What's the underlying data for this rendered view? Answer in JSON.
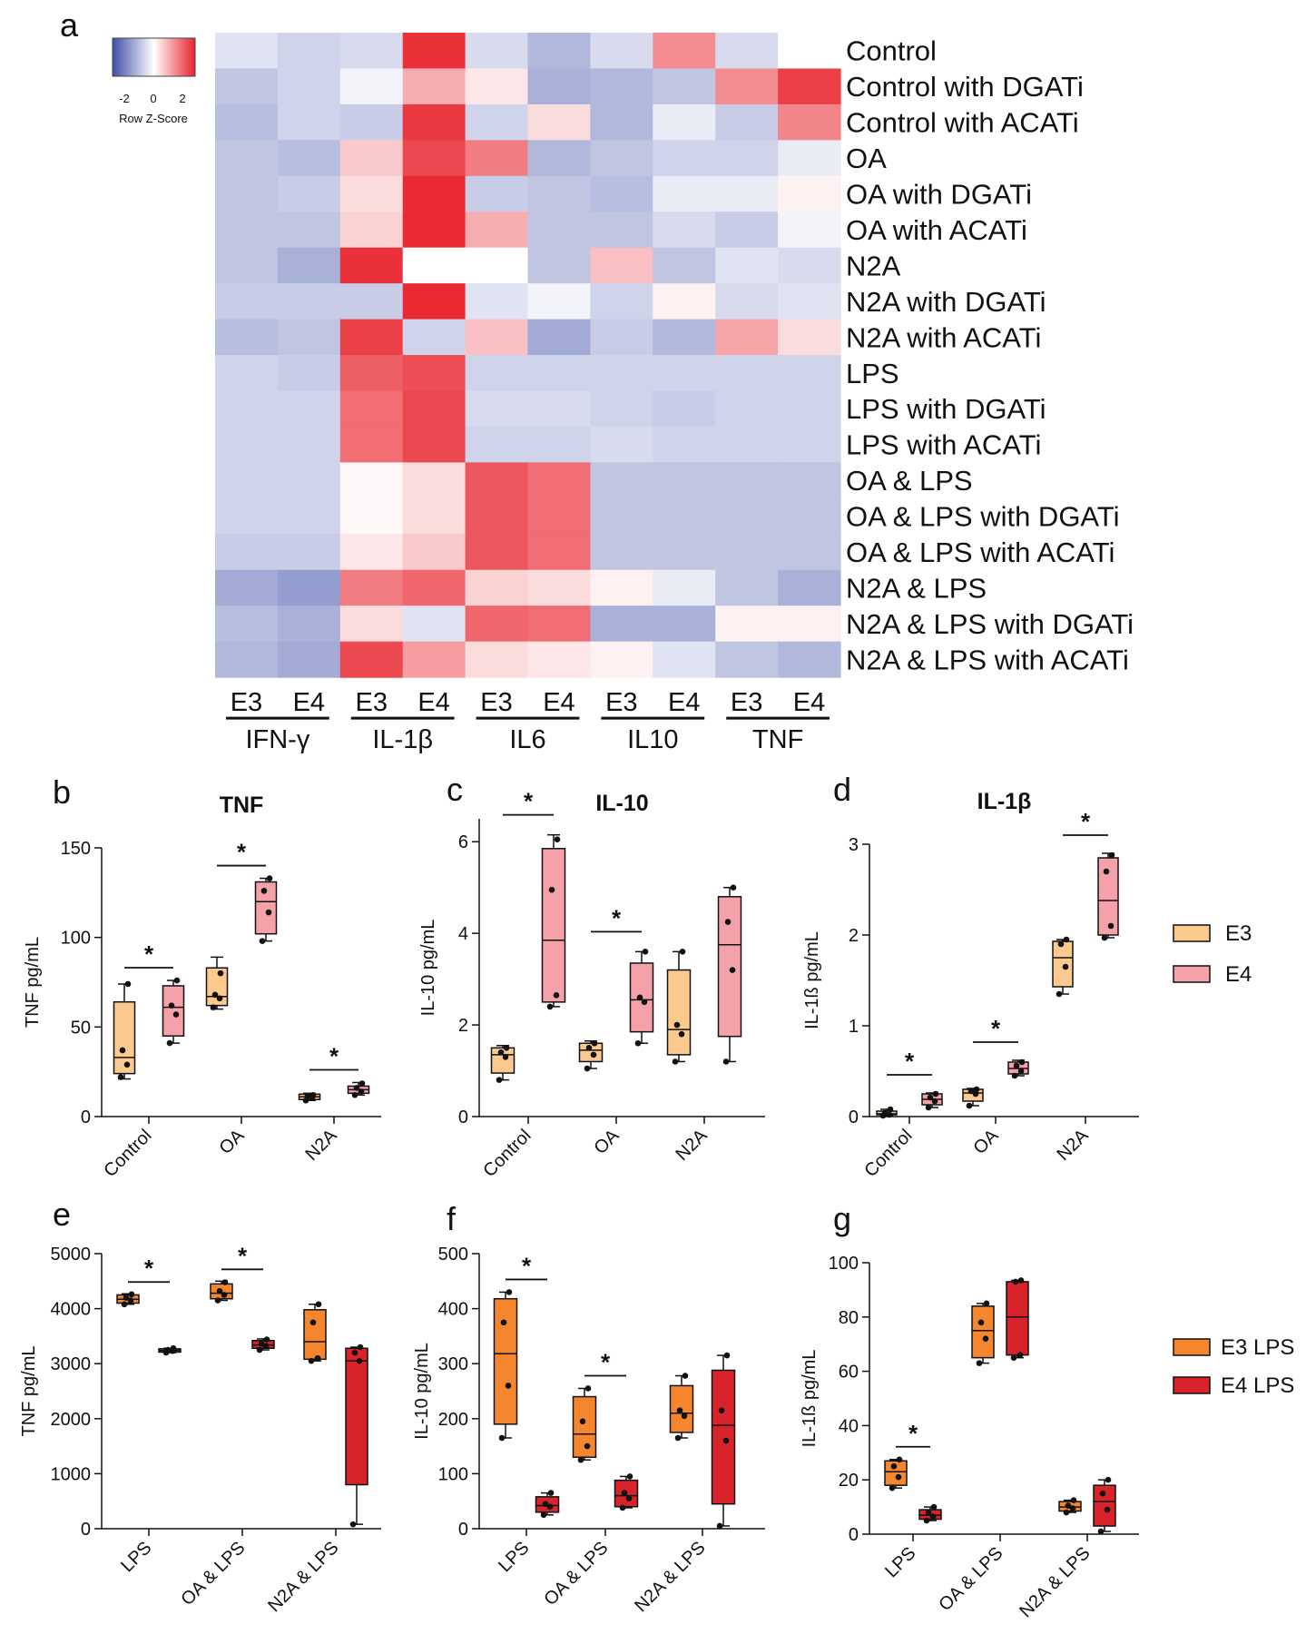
{
  "panel_letters": {
    "a": "a",
    "b": "b",
    "c": "c",
    "d": "d",
    "e": "e",
    "f": "f",
    "g": "g"
  },
  "colors": {
    "e3": "#fcc98e",
    "e4": "#f4a1a9",
    "e3lps": "#f5862e",
    "e4lps": "#d9232a",
    "low": "#3f4fa8",
    "mid": "#ffffff",
    "high": "#e8232c"
  },
  "chart_data": [
    {
      "panel": "a",
      "type": "heatmap",
      "legend": {
        "title": "Row Z-Score",
        "ticks": [
          "-2",
          "0",
          "2"
        ],
        "range": [
          -2.6,
          2.6
        ]
      },
      "rows": [
        "Control",
        "Control with DGATi",
        "Control with ACATi",
        "OA",
        "OA with DGATi",
        "OA with ACATi",
        "N2A",
        "N2A with DGATi",
        "N2A with ACATi",
        "LPS",
        "LPS with DGATi",
        "LPS with ACATi",
        "OA & LPS",
        "OA & LPS with DGATi",
        "OA & LPS with ACATi",
        "N2A & LPS",
        "N2A & LPS with DGATi",
        "N2A & LPS with ACATi"
      ],
      "columns": [
        "E3",
        "E4",
        "E3",
        "E4",
        "E3",
        "E4",
        "E3",
        "E4",
        "E3",
        "E4"
      ],
      "groups": [
        "IFN-γ",
        "IL-1β",
        "IL6",
        "IL10",
        "TNF"
      ],
      "values": [
        [
          -0.3,
          -0.5,
          -0.4,
          2.4,
          -0.4,
          -0.9,
          -0.4,
          1.2,
          -0.4,
          0.0
        ],
        [
          -0.7,
          -0.5,
          -0.1,
          0.8,
          0.2,
          -1.0,
          -0.9,
          -0.7,
          1.2,
          2.2
        ],
        [
          -0.8,
          -0.5,
          -0.6,
          2.3,
          -0.5,
          0.3,
          -0.9,
          -0.2,
          -0.6,
          1.3
        ],
        [
          -0.7,
          -0.8,
          0.5,
          2.1,
          1.4,
          -0.9,
          -0.7,
          -0.5,
          -0.5,
          -0.2
        ],
        [
          -0.7,
          -0.6,
          0.3,
          2.5,
          -0.6,
          -0.7,
          -0.8,
          -0.2,
          -0.2,
          0.1
        ],
        [
          -0.7,
          -0.7,
          0.4,
          2.5,
          0.8,
          -0.7,
          -0.7,
          -0.4,
          -0.6,
          -0.1
        ],
        [
          -0.7,
          -1.0,
          2.4,
          0.0,
          0.0,
          -0.7,
          0.6,
          -0.7,
          -0.3,
          -0.4
        ],
        [
          -0.6,
          -0.6,
          -0.6,
          2.5,
          -0.3,
          -0.1,
          -0.5,
          0.1,
          -0.4,
          -0.3
        ],
        [
          -0.8,
          -0.7,
          2.2,
          -0.5,
          0.6,
          -1.1,
          -0.6,
          -0.9,
          0.9,
          0.3
        ],
        [
          -0.5,
          -0.6,
          1.8,
          2.0,
          -0.5,
          -0.5,
          -0.5,
          -0.5,
          -0.5,
          -0.5
        ],
        [
          -0.5,
          -0.5,
          1.6,
          2.1,
          -0.4,
          -0.4,
          -0.5,
          -0.6,
          -0.5,
          -0.5
        ],
        [
          -0.5,
          -0.5,
          1.6,
          2.1,
          -0.5,
          -0.5,
          -0.4,
          -0.5,
          -0.5,
          -0.5
        ],
        [
          -0.5,
          -0.5,
          0.05,
          0.3,
          1.9,
          1.6,
          -0.7,
          -0.7,
          -0.7,
          -0.7
        ],
        [
          -0.5,
          -0.5,
          0.05,
          0.3,
          1.9,
          1.6,
          -0.7,
          -0.7,
          -0.7,
          -0.7
        ],
        [
          -0.6,
          -0.6,
          0.2,
          0.5,
          1.9,
          1.6,
          -0.7,
          -0.7,
          -0.7,
          -0.7
        ],
        [
          -1.1,
          -1.3,
          1.4,
          1.7,
          0.4,
          0.3,
          0.1,
          -0.2,
          -0.7,
          -1.0
        ],
        [
          -0.8,
          -1.0,
          0.3,
          -0.3,
          1.7,
          1.6,
          -1.0,
          -1.0,
          0.1,
          0.1
        ],
        [
          -0.9,
          -1.1,
          2.1,
          1.0,
          0.3,
          0.2,
          0.1,
          -0.3,
          -0.7,
          -0.9
        ]
      ]
    },
    {
      "panel": "b",
      "type": "box",
      "title": "TNF",
      "ylabel": "TNF pg/mL",
      "ylim": [
        0,
        150
      ],
      "yticks": [
        "0",
        "50",
        "100",
        "150"
      ],
      "categories": [
        "Control",
        "OA",
        "N2A"
      ],
      "legend": [
        "E3",
        "E4"
      ],
      "significance": [
        true,
        true,
        true
      ],
      "star": "*",
      "series": [
        {
          "name": "E3",
          "boxes": [
            {
              "min": 21,
              "q1": 24,
              "median": 33,
              "q3": 64,
              "max": 74,
              "points": [
                22,
                29,
                37,
                74
              ]
            },
            {
              "min": 60,
              "q1": 62,
              "median": 67,
              "q3": 83,
              "max": 89,
              "points": [
                61,
                66,
                68,
                80
              ]
            },
            {
              "min": 9,
              "q1": 9.5,
              "median": 11,
              "q3": 12.5,
              "max": 13,
              "points": [
                9,
                10.5,
                11.5,
                12
              ]
            }
          ]
        },
        {
          "name": "E4",
          "boxes": [
            {
              "min": 41,
              "q1": 45,
              "median": 61,
              "q3": 73,
              "max": 76,
              "points": [
                41,
                57,
                62,
                76
              ]
            },
            {
              "min": 98,
              "q1": 102,
              "median": 120,
              "q3": 131,
              "max": 133,
              "points": [
                98,
                114,
                126,
                133
              ]
            },
            {
              "min": 12,
              "q1": 13,
              "median": 15,
              "q3": 17,
              "max": 19,
              "points": [
                12,
                14,
                16,
                18.5
              ]
            }
          ]
        }
      ]
    },
    {
      "panel": "c",
      "type": "box",
      "title": "IL-10",
      "ylabel": "IL-10 pg/mL",
      "ylim": [
        0,
        6.5
      ],
      "yticks": [
        "0",
        "2",
        "4",
        "6"
      ],
      "categories": [
        "Control",
        "OA",
        "N2A"
      ],
      "legend": [
        "E3",
        "E4"
      ],
      "significance": [
        true,
        true,
        false
      ],
      "star": "*",
      "series": [
        {
          "name": "E3",
          "boxes": [
            {
              "min": 0.8,
              "q1": 0.95,
              "median": 1.35,
              "q3": 1.5,
              "max": 1.55,
              "points": [
                0.8,
                1.3,
                1.4,
                1.5
              ]
            },
            {
              "min": 1.05,
              "q1": 1.2,
              "median": 1.45,
              "q3": 1.6,
              "max": 1.65,
              "points": [
                1.05,
                1.35,
                1.5,
                1.6
              ]
            },
            {
              "min": 1.2,
              "q1": 1.35,
              "median": 1.9,
              "q3": 3.2,
              "max": 3.6,
              "points": [
                1.2,
                1.8,
                2.0,
                3.6
              ]
            }
          ]
        },
        {
          "name": "E4",
          "boxes": [
            {
              "min": 2.4,
              "q1": 2.5,
              "median": 3.85,
              "q3": 5.85,
              "max": 6.15,
              "points": [
                2.4,
                2.65,
                4.95,
                6.05
              ]
            },
            {
              "min": 1.6,
              "q1": 1.85,
              "median": 2.55,
              "q3": 3.35,
              "max": 3.6,
              "points": [
                1.6,
                2.5,
                2.6,
                3.6
              ]
            },
            {
              "min": 1.2,
              "q1": 1.75,
              "median": 3.75,
              "q3": 4.8,
              "max": 5.0,
              "points": [
                1.2,
                3.2,
                4.25,
                5.0
              ]
            }
          ]
        }
      ]
    },
    {
      "panel": "d",
      "type": "box",
      "title": "IL-1β",
      "ylabel": "IL-1ß pg/mL",
      "ylim": [
        0,
        3
      ],
      "yticks": [
        "0",
        "1",
        "2",
        "3"
      ],
      "categories": [
        "Control",
        "OA",
        "N2A"
      ],
      "legend": [
        "E3",
        "E4"
      ],
      "significance": [
        true,
        true,
        true
      ],
      "star": "*",
      "series": [
        {
          "name": "E3",
          "boxes": [
            {
              "min": 0.01,
              "q1": 0.02,
              "median": 0.03,
              "q3": 0.06,
              "max": 0.08,
              "points": [
                0.01,
                0.02,
                0.04,
                0.08
              ]
            },
            {
              "min": 0.12,
              "q1": 0.17,
              "median": 0.26,
              "q3": 0.3,
              "max": 0.31,
              "points": [
                0.12,
                0.25,
                0.28,
                0.3
              ]
            },
            {
              "min": 1.35,
              "q1": 1.43,
              "median": 1.75,
              "q3": 1.93,
              "max": 1.95,
              "points": [
                1.35,
                1.65,
                1.9,
                1.95
              ]
            }
          ]
        },
        {
          "name": "E4",
          "boxes": [
            {
              "min": 0.1,
              "q1": 0.13,
              "median": 0.19,
              "q3": 0.25,
              "max": 0.26,
              "points": [
                0.1,
                0.17,
                0.21,
                0.25
              ]
            },
            {
              "min": 0.45,
              "q1": 0.47,
              "median": 0.53,
              "q3": 0.6,
              "max": 0.62,
              "points": [
                0.45,
                0.5,
                0.56,
                0.6
              ]
            },
            {
              "min": 1.97,
              "q1": 2.0,
              "median": 2.38,
              "q3": 2.85,
              "max": 2.9,
              "points": [
                1.97,
                2.1,
                2.7,
                2.88
              ]
            }
          ]
        }
      ]
    },
    {
      "panel": "e",
      "type": "box",
      "title": "",
      "ylabel": "TNF pg/mL",
      "ylim": [
        0,
        5000
      ],
      "yticks": [
        "0",
        "1000",
        "2000",
        "3000",
        "4000",
        "5000"
      ],
      "categories": [
        "LPS",
        "OA & LPS",
        "N2A & LPS"
      ],
      "legend": [
        "E3 LPS",
        "E4 LPS"
      ],
      "significance": [
        true,
        true,
        false
      ],
      "star": "*",
      "series": [
        {
          "name": "E3 LPS",
          "boxes": [
            {
              "min": 4080,
              "q1": 4100,
              "median": 4170,
              "q3": 4250,
              "max": 4270,
              "points": [
                4080,
                4150,
                4200,
                4260
              ]
            },
            {
              "min": 4150,
              "q1": 4180,
              "median": 4280,
              "q3": 4450,
              "max": 4500,
              "points": [
                4150,
                4250,
                4320,
                4480
              ]
            },
            {
              "min": 3050,
              "q1": 3080,
              "median": 3400,
              "q3": 3980,
              "max": 4080,
              "points": [
                3050,
                3100,
                3750,
                4080
              ]
            }
          ]
        },
        {
          "name": "E4 LPS",
          "boxes": [
            {
              "min": 3200,
              "q1": 3210,
              "median": 3240,
              "q3": 3270,
              "max": 3280,
              "points": [
                3200,
                3230,
                3250,
                3280
              ]
            },
            {
              "min": 3250,
              "q1": 3280,
              "median": 3340,
              "q3": 3420,
              "max": 3450,
              "points": [
                3250,
                3320,
                3360,
                3440
              ]
            },
            {
              "min": 80,
              "q1": 800,
              "median": 3050,
              "q3": 3280,
              "max": 3300,
              "points": [
                80,
                3050,
                3200,
                3300
              ]
            }
          ]
        }
      ]
    },
    {
      "panel": "f",
      "type": "box",
      "title": "",
      "ylabel": "IL-10 pg/mL",
      "ylim": [
        0,
        500
      ],
      "yticks": [
        "0",
        "100",
        "200",
        "300",
        "400",
        "500"
      ],
      "categories": [
        "LPS",
        "OA & LPS",
        "N2A & LPS"
      ],
      "legend": [
        "E3 LPS",
        "E4 LPS"
      ],
      "significance": [
        true,
        true,
        false
      ],
      "star": "*",
      "series": [
        {
          "name": "E3 LPS",
          "boxes": [
            {
              "min": 165,
              "q1": 190,
              "median": 318,
              "q3": 418,
              "max": 430,
              "points": [
                165,
                260,
                375,
                430
              ]
            },
            {
              "min": 125,
              "q1": 130,
              "median": 172,
              "q3": 240,
              "max": 255,
              "points": [
                125,
                150,
                195,
                255
              ]
            },
            {
              "min": 165,
              "q1": 175,
              "median": 210,
              "q3": 260,
              "max": 278,
              "points": [
                165,
                205,
                215,
                278
              ]
            }
          ]
        },
        {
          "name": "E4 LPS",
          "boxes": [
            {
              "min": 25,
              "q1": 30,
              "median": 42,
              "q3": 58,
              "max": 65,
              "points": [
                25,
                40,
                45,
                65
              ]
            },
            {
              "min": 38,
              "q1": 40,
              "median": 60,
              "q3": 88,
              "max": 95,
              "points": [
                38,
                55,
                65,
                95
              ]
            },
            {
              "min": 5,
              "q1": 45,
              "median": 188,
              "q3": 288,
              "max": 315,
              "points": [
                5,
                160,
                215,
                315
              ]
            }
          ]
        }
      ]
    },
    {
      "panel": "g",
      "type": "box",
      "title": "",
      "ylabel": "IL-1ß pg/mL",
      "ylim": [
        0,
        100
      ],
      "yticks": [
        "0",
        "20",
        "40",
        "60",
        "80",
        "100"
      ],
      "categories": [
        "LPS",
        "OA & LPS",
        "N2A & LPS"
      ],
      "legend": [
        "E3 LPS",
        "E4 LPS"
      ],
      "significance": [
        true,
        false,
        false
      ],
      "star": "*",
      "series": [
        {
          "name": "E3 LPS",
          "boxes": [
            {
              "min": 17,
              "q1": 18,
              "median": 23,
              "q3": 27,
              "max": 27.5,
              "points": [
                17,
                21,
                25,
                27.5
              ]
            },
            {
              "min": 63,
              "q1": 65,
              "median": 75,
              "q3": 84,
              "max": 85,
              "points": [
                63,
                72,
                78,
                85
              ]
            },
            {
              "min": 8,
              "q1": 8.5,
              "median": 10,
              "q3": 12,
              "max": 12.5,
              "points": [
                8,
                9.5,
                10.5,
                12.5
              ]
            }
          ]
        },
        {
          "name": "E4 LPS",
          "boxes": [
            {
              "min": 5,
              "q1": 5.5,
              "median": 7,
              "q3": 9,
              "max": 10,
              "points": [
                5,
                6.5,
                8,
                10
              ]
            },
            {
              "min": 65,
              "q1": 66,
              "median": 80,
              "q3": 93,
              "max": 93.5,
              "points": [
                65,
                66,
                93,
                93.5
              ]
            },
            {
              "min": 1,
              "q1": 3,
              "median": 12,
              "q3": 18,
              "max": 20,
              "points": [
                1,
                9,
                15,
                20
              ]
            }
          ]
        }
      ]
    }
  ]
}
